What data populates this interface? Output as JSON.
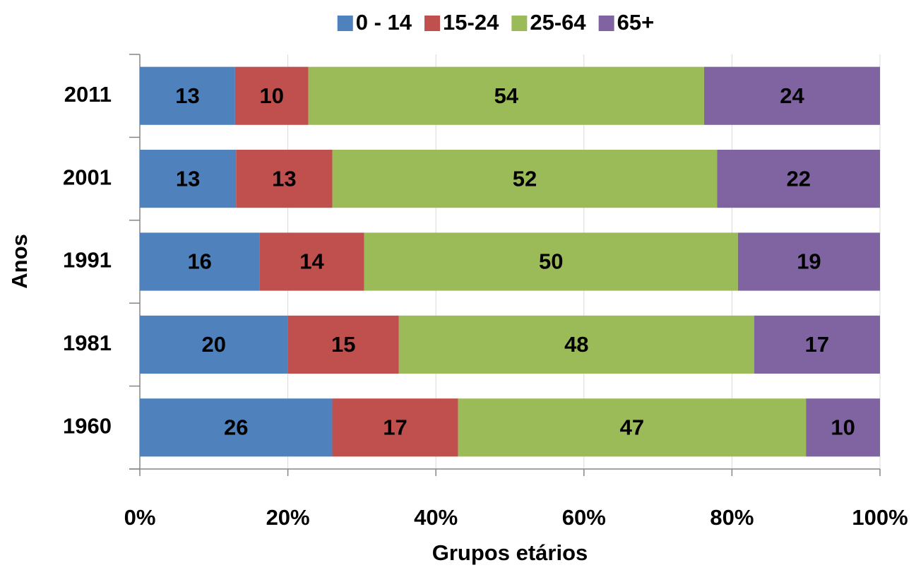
{
  "chart_data": {
    "type": "bar",
    "orientation": "horizontal",
    "stacked": "percent",
    "x_label": "Grupos etários",
    "y_label": "Anos",
    "categories": [
      "1960",
      "1981",
      "1991",
      "2001",
      "2011"
    ],
    "series": [
      {
        "name": "0 - 14",
        "color": "#4f81bd",
        "values": [
          26,
          20,
          16,
          13,
          13
        ]
      },
      {
        "name": "15-24",
        "color": "#c0504d",
        "values": [
          17,
          15,
          14,
          13,
          10
        ]
      },
      {
        "name": "25-64",
        "color": "#9bbb59",
        "values": [
          47,
          48,
          50,
          52,
          54
        ]
      },
      {
        "name": "65+",
        "color": "#8064a2",
        "values": [
          10,
          17,
          19,
          22,
          24
        ]
      }
    ],
    "xlim": [
      0,
      100
    ],
    "xticks": [
      {
        "value": 0,
        "label": "0%"
      },
      {
        "value": 20,
        "label": "20%"
      },
      {
        "value": 40,
        "label": "40%"
      },
      {
        "value": 60,
        "label": "60%"
      },
      {
        "value": 80,
        "label": "80%"
      },
      {
        "value": 100,
        "label": "100%"
      }
    ],
    "grid": true,
    "legend": "top"
  }
}
